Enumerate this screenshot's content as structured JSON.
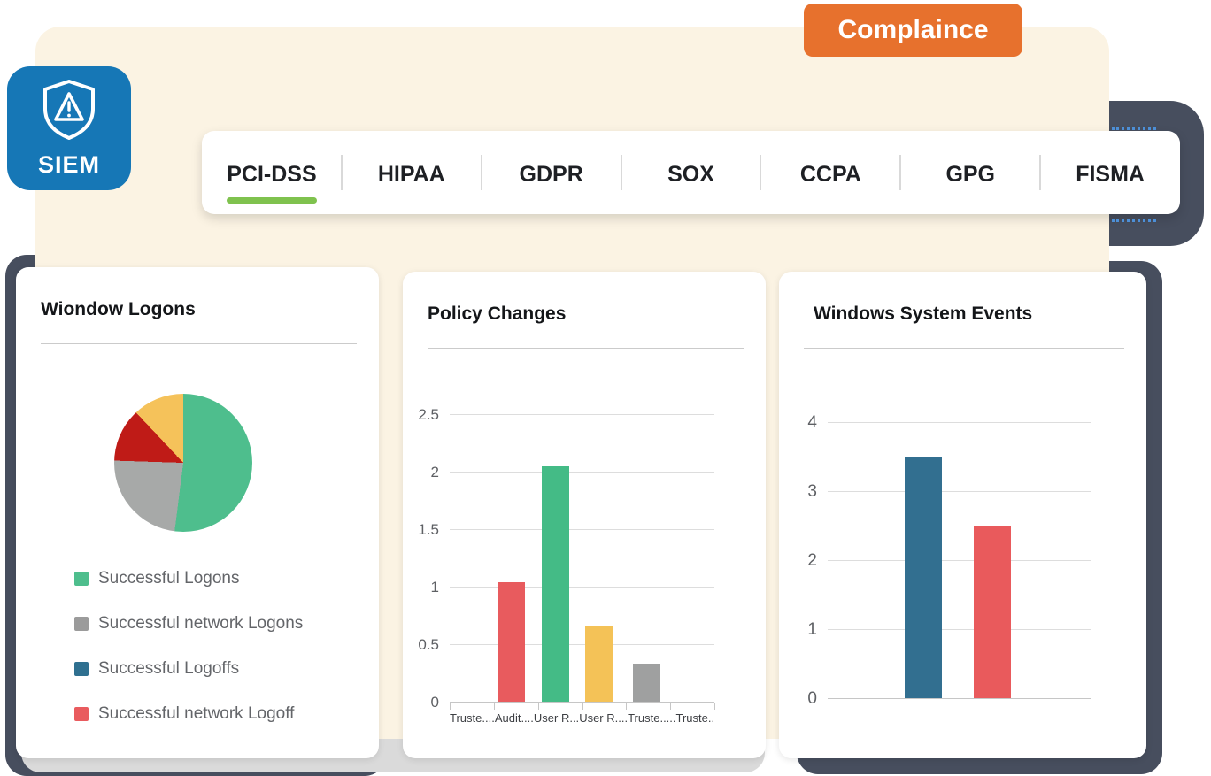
{
  "header": {
    "badge": {
      "label": "Complaince",
      "bg": "#E7712D",
      "text_color": "#FFFFFF"
    },
    "siem_tile": {
      "label": "SIEM",
      "bg": "#1677B6",
      "icon": "shield-warning-icon"
    }
  },
  "tabs": {
    "active_underline_color": "#7FC24E",
    "items": [
      {
        "label": "PCI-DSS",
        "active": true
      },
      {
        "label": "HIPAA",
        "active": false
      },
      {
        "label": "GDPR",
        "active": false
      },
      {
        "label": "SOX",
        "active": false
      },
      {
        "label": "CCPA",
        "active": false
      },
      {
        "label": "GPG",
        "active": false
      },
      {
        "label": "FISMA",
        "active": false
      }
    ]
  },
  "colors": {
    "dark_accent": "#474E5E",
    "gray_sheet": "#DADADA",
    "cream_panel": "#FBF3E3",
    "card_bg": "#FFFFFF"
  },
  "chart_data": [
    {
      "type": "pie",
      "title": "Wiondow Logons",
      "slices": [
        {
          "label": "Successful Logons",
          "percent": 52,
          "color": "#4EBE8D"
        },
        {
          "label": "Successful network Logons",
          "percent": 23.5,
          "color": "#A7A9A8"
        },
        {
          "label": "Successful network Logoff",
          "percent": 12.5,
          "color": "#BF1B17"
        },
        {
          "label": "",
          "percent": 12,
          "color": "#F5C25A"
        }
      ],
      "legend": [
        {
          "label": "Successful Logons",
          "color": "#4EBE8D"
        },
        {
          "label": "Successful network Logons",
          "color": "#9B9B9B"
        },
        {
          "label": "Successful Logoffs",
          "color": "#2F7090"
        },
        {
          "label": "Successful network Logoff",
          "color": "#E95B5E"
        }
      ],
      "legend_position": "bottom"
    },
    {
      "type": "bar",
      "title": "Policy Changes",
      "categories": [
        "Truste....",
        "Audit....",
        "User R...",
        "User R....",
        "Truste.....",
        "Truste.."
      ],
      "values": [
        0,
        1.04,
        2.05,
        0.66,
        0.33,
        0
      ],
      "bar_colors": [
        "",
        "#E85B5E",
        "#44BB86",
        "#F4C257",
        "#9FA0A0",
        ""
      ],
      "bar_centers": [
        null,
        0.232,
        0.398,
        0.565,
        0.743,
        null
      ],
      "ylim": [
        0,
        2.5
      ],
      "y_ticks": [
        0,
        0.5,
        1,
        1.5,
        2,
        2.5
      ],
      "grid": true,
      "xlabel": "",
      "ylabel": ""
    },
    {
      "type": "bar",
      "title": "Windows System Events",
      "categories": [
        "",
        ""
      ],
      "values": [
        3.5,
        2.5
      ],
      "bar_colors": [
        "#326F90",
        "#E95A5C"
      ],
      "bar_centers": [
        0.364,
        0.626
      ],
      "ylim": [
        0,
        4
      ],
      "y_ticks": [
        0,
        1,
        2,
        3,
        4
      ],
      "grid": true,
      "xlabel": "",
      "ylabel": ""
    }
  ]
}
